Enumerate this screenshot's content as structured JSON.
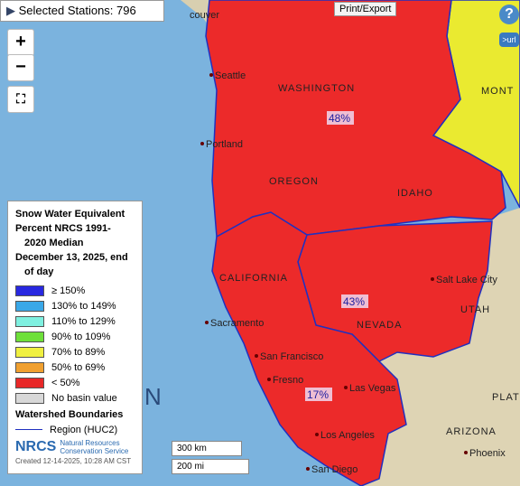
{
  "toolbar": {
    "stations_label": "Selected Stations:",
    "stations_count": "796",
    "print": "Print/Export",
    "help": "?",
    "url": ">url"
  },
  "zoom": {
    "in": "+",
    "out": "−"
  },
  "legend": {
    "title": [
      "Snow Water Equivalent",
      "Percent NRCS 1991-",
      "2020 Median",
      "December 13, 2025, end",
      "of day"
    ],
    "items": [
      {
        "label": "≥ 150%",
        "color": "#2828e0"
      },
      {
        "label": "130% to 149%",
        "color": "#3aa8e8"
      },
      {
        "label": "110% to 129%",
        "color": "#7ff0e0"
      },
      {
        "label": "90% to 109%",
        "color": "#6ee03a"
      },
      {
        "label": "70% to 89%",
        "color": "#f0f040"
      },
      {
        "label": "50% to 69%",
        "color": "#f0a030"
      },
      {
        "label": "< 50%",
        "color": "#e82828"
      },
      {
        "label": "No basin value",
        "color": "#d8d8d8"
      }
    ],
    "boundaries_title": "Watershed Boundaries",
    "boundary_item": "Region (HUC2)",
    "logo": "NRCS",
    "logo_text": [
      "Natural Resources",
      "Conservation Service"
    ],
    "created": "Created 12-14-2025, 10:28 AM CST"
  },
  "scale": {
    "km": "300 km",
    "mi": "200 mi"
  },
  "regions": [
    {
      "name_label": "48%"
    },
    {
      "name_label": "43%"
    },
    {
      "name_label": "17%"
    }
  ],
  "places": [
    "couver",
    "Seattle",
    "WASHINGTON",
    "Portland",
    "OREGON",
    "IDAHO",
    "CALIFORNIA",
    "NEVADA",
    "Sacramento",
    "San Francisco",
    "Fresno",
    "Las Vegas",
    "Los Angeles",
    "San Diego",
    "Salt Lake City",
    "UTAH",
    "ARIZONA",
    "Phoenix",
    "MONT",
    "N",
    "PLATE"
  ]
}
